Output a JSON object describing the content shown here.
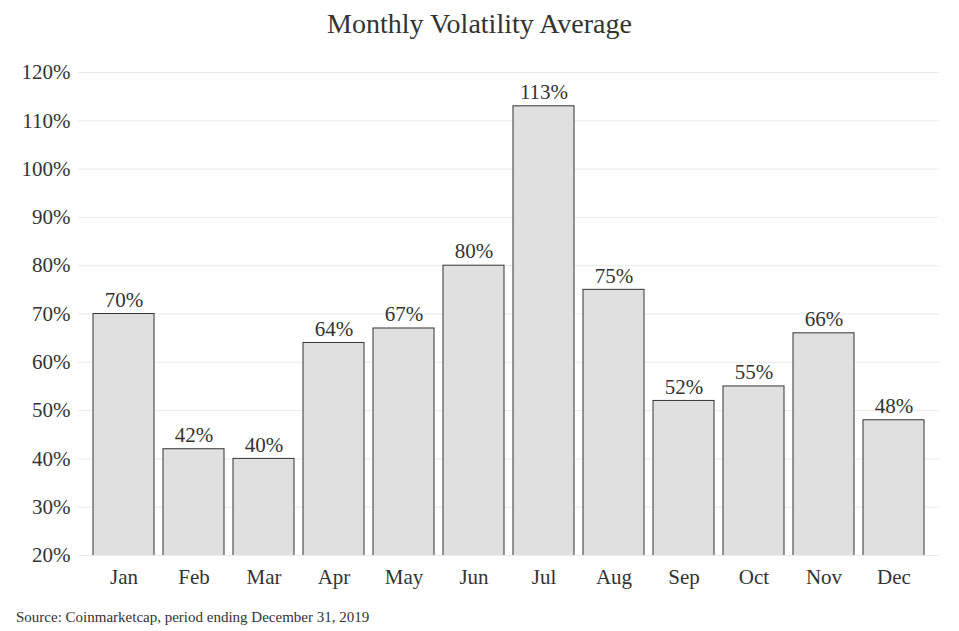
{
  "chart_data": {
    "type": "bar",
    "title": "Monthly Volatility Average",
    "caption": "Source: Coinmarketcap, period ending December 31, 2019",
    "categories": [
      "Jan",
      "Feb",
      "Mar",
      "Apr",
      "May",
      "Jun",
      "Jul",
      "Aug",
      "Sep",
      "Oct",
      "Nov",
      "Dec"
    ],
    "values": [
      70,
      42,
      40,
      64,
      67,
      80,
      113,
      75,
      52,
      55,
      66,
      48
    ],
    "value_labels": [
      "70%",
      "42%",
      "40%",
      "64%",
      "67%",
      "80%",
      "113%",
      "75%",
      "52%",
      "55%",
      "66%",
      "48%"
    ],
    "color": "#e0e0e0",
    "ylim": [
      20,
      120
    ],
    "yticks": [
      {
        "value": 20,
        "label": "20%"
      },
      {
        "value": 30,
        "label": "30%"
      },
      {
        "value": 40,
        "label": "40%"
      },
      {
        "value": 50,
        "label": "50%"
      },
      {
        "value": 60,
        "label": "60%"
      },
      {
        "value": 70,
        "label": "70%"
      },
      {
        "value": 80,
        "label": "80%"
      },
      {
        "value": 90,
        "label": "90%"
      },
      {
        "value": 100,
        "label": "100%"
      },
      {
        "value": 110,
        "label": "110%"
      },
      {
        "value": 120,
        "label": "120%"
      }
    ],
    "grid": true,
    "data_labels": true
  }
}
